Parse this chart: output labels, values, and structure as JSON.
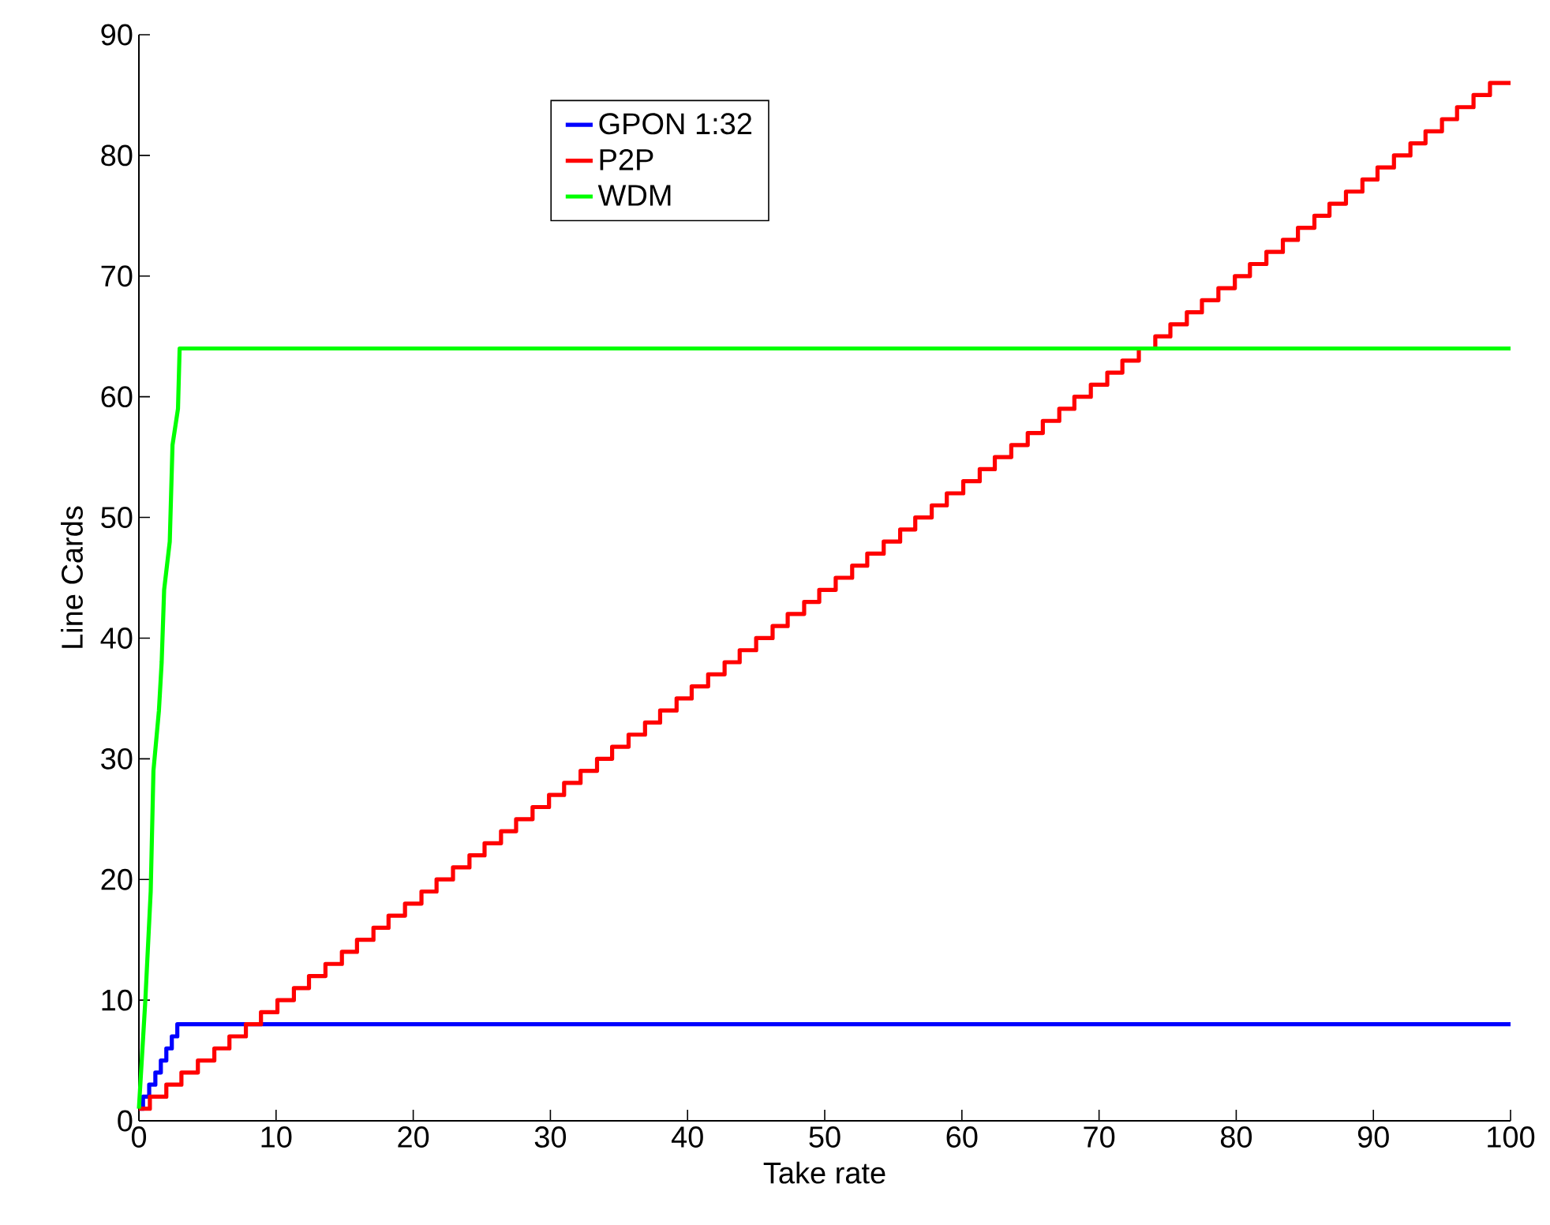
{
  "chart_data": {
    "type": "line",
    "xlabel": "Take rate",
    "ylabel": "Line Cards",
    "xlim": [
      0,
      100
    ],
    "ylim": [
      0,
      90
    ],
    "xticks": [
      0,
      10,
      20,
      30,
      40,
      50,
      60,
      70,
      80,
      90,
      100
    ],
    "yticks": [
      0,
      10,
      20,
      30,
      40,
      50,
      60,
      70,
      80,
      90
    ],
    "legend": "top",
    "grid": false,
    "line_style": "solid",
    "marker": "none",
    "series": [
      {
        "name": "GPON 1:32",
        "type": "step",
        "color": "#0000ff",
        "x": [
          0,
          0.3,
          0.75,
          1.2,
          1.6,
          2.0,
          2.4,
          2.8,
          100
        ],
        "values": [
          1,
          2,
          3,
          4,
          5,
          6,
          7,
          8,
          8
        ]
      },
      {
        "name": "P2P",
        "type": "step",
        "color": "#ff0000",
        "x": [
          0,
          0.8,
          2.0,
          3.1,
          4.3,
          5.5,
          6.6,
          7.8,
          8.9,
          10.1,
          11.3,
          12.4,
          13.6,
          14.8,
          15.9,
          17.1,
          18.2,
          19.4,
          20.6,
          21.7,
          22.9,
          24.1,
          25.2,
          26.4,
          27.5,
          28.7,
          29.9,
          31.0,
          32.2,
          33.4,
          34.5,
          35.7,
          36.9,
          38.0,
          39.2,
          40.3,
          41.5,
          42.7,
          43.8,
          45.0,
          46.2,
          47.3,
          48.5,
          49.6,
          50.8,
          52.0,
          53.1,
          54.3,
          55.5,
          56.6,
          57.8,
          58.9,
          60.1,
          61.3,
          62.4,
          63.6,
          64.8,
          65.9,
          67.1,
          68.2,
          69.4,
          70.6,
          71.7,
          72.9,
          74.1,
          75.2,
          76.4,
          77.5,
          78.7,
          79.9,
          81.0,
          82.2,
          83.4,
          84.5,
          85.7,
          86.8,
          88.0,
          89.2,
          90.3,
          91.5,
          92.7,
          93.8,
          95.0,
          96.1,
          97.3,
          98.5,
          100
        ],
        "values": [
          1,
          2,
          3,
          4,
          5,
          6,
          7,
          8,
          9,
          10,
          11,
          12,
          13,
          14,
          15,
          16,
          17,
          18,
          19,
          20,
          21,
          22,
          23,
          24,
          25,
          26,
          27,
          28,
          29,
          30,
          31,
          32,
          33,
          34,
          35,
          36,
          37,
          38,
          39,
          40,
          41,
          42,
          43,
          44,
          45,
          46,
          47,
          48,
          49,
          50,
          51,
          52,
          53,
          54,
          55,
          56,
          57,
          58,
          59,
          60,
          61,
          62,
          63,
          64,
          65,
          66,
          67,
          68,
          69,
          70,
          71,
          72,
          73,
          74,
          75,
          76,
          77,
          78,
          79,
          80,
          81,
          82,
          83,
          84,
          85,
          86,
          86
        ]
      },
      {
        "name": "WDM",
        "type": "line",
        "color": "#00ff00",
        "x": [
          0,
          0.47,
          0.86,
          1.06,
          1.46,
          1.66,
          1.84,
          2.25,
          2.45,
          2.85,
          2.97,
          100
        ],
        "values": [
          1,
          10,
          19,
          29,
          34,
          38,
          44,
          48,
          56,
          59,
          64,
          64
        ]
      }
    ]
  }
}
